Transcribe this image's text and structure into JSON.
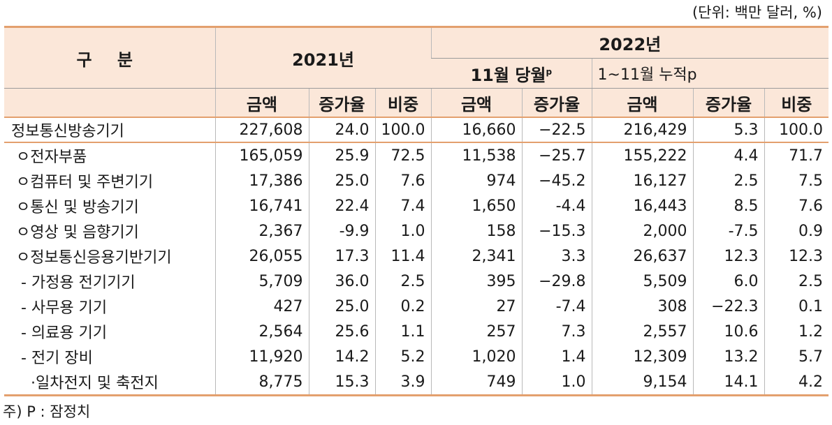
{
  "unit_note": "(단위: 백만 달러, %)",
  "footnote": "주) P : 잠정치",
  "header": {
    "category": "구  분",
    "y2021": "2021년",
    "y2022": "2022년",
    "nov_month": "11월 당월",
    "nov_month_sup": "p",
    "cum": "1~11월 누적p",
    "amount": "금액",
    "growth": "증가율",
    "share": "비중"
  },
  "rows": [
    {
      "label": "정보통신방송기기",
      "v": [
        "227,608",
        "24.0",
        "100.0",
        "16,660",
        "−22.5",
        "216,429",
        "5.3",
        "100.0"
      ]
    },
    {
      "label": " ㅇ전자부품",
      "v": [
        "165,059",
        "25.9",
        "72.5",
        "11,538",
        "−25.7",
        "155,222",
        "4.4",
        "71.7"
      ]
    },
    {
      "label": " ㅇ컴퓨터 및 주변기기",
      "v": [
        "17,386",
        "25.0",
        "7.6",
        "974",
        "−45.2",
        "16,127",
        "2.5",
        "7.5"
      ]
    },
    {
      "label": " ㅇ통신 및 방송기기",
      "v": [
        "16,741",
        "22.4",
        "7.4",
        "1,650",
        "-4.4",
        "16,443",
        "8.5",
        "7.6"
      ]
    },
    {
      "label": " ㅇ영상 및 음향기기",
      "v": [
        "2,367",
        "-9.9",
        "1.0",
        "158",
        "−15.3",
        "2,000",
        "-7.5",
        "0.9"
      ]
    },
    {
      "label": " ㅇ정보통신응용기반기기",
      "v": [
        "26,055",
        "17.3",
        "11.4",
        "2,341",
        "3.3",
        "26,637",
        "12.3",
        "12.3"
      ]
    },
    {
      "label": "  - 가정용 전기기기",
      "v": [
        "5,709",
        "36.0",
        "2.5",
        "395",
        "−29.8",
        "5,509",
        "6.0",
        "2.5"
      ]
    },
    {
      "label": "  - 사무용 기기",
      "v": [
        "427",
        "25.0",
        "0.2",
        "27",
        "-7.4",
        "308",
        "−22.3",
        "0.1"
      ]
    },
    {
      "label": "  - 의료용 기기",
      "v": [
        "2,564",
        "25.6",
        "1.1",
        "257",
        "7.3",
        "2,557",
        "10.6",
        "1.2"
      ]
    },
    {
      "label": "  - 전기 장비",
      "v": [
        "11,920",
        "14.2",
        "5.2",
        "1,020",
        "1.4",
        "12,309",
        "13.2",
        "5.7"
      ]
    },
    {
      "label": "    ·일차전지 및 축전지",
      "v": [
        "8,775",
        "15.3",
        "3.9",
        "749",
        "1.0",
        "9,154",
        "14.1",
        "4.2"
      ]
    }
  ]
}
